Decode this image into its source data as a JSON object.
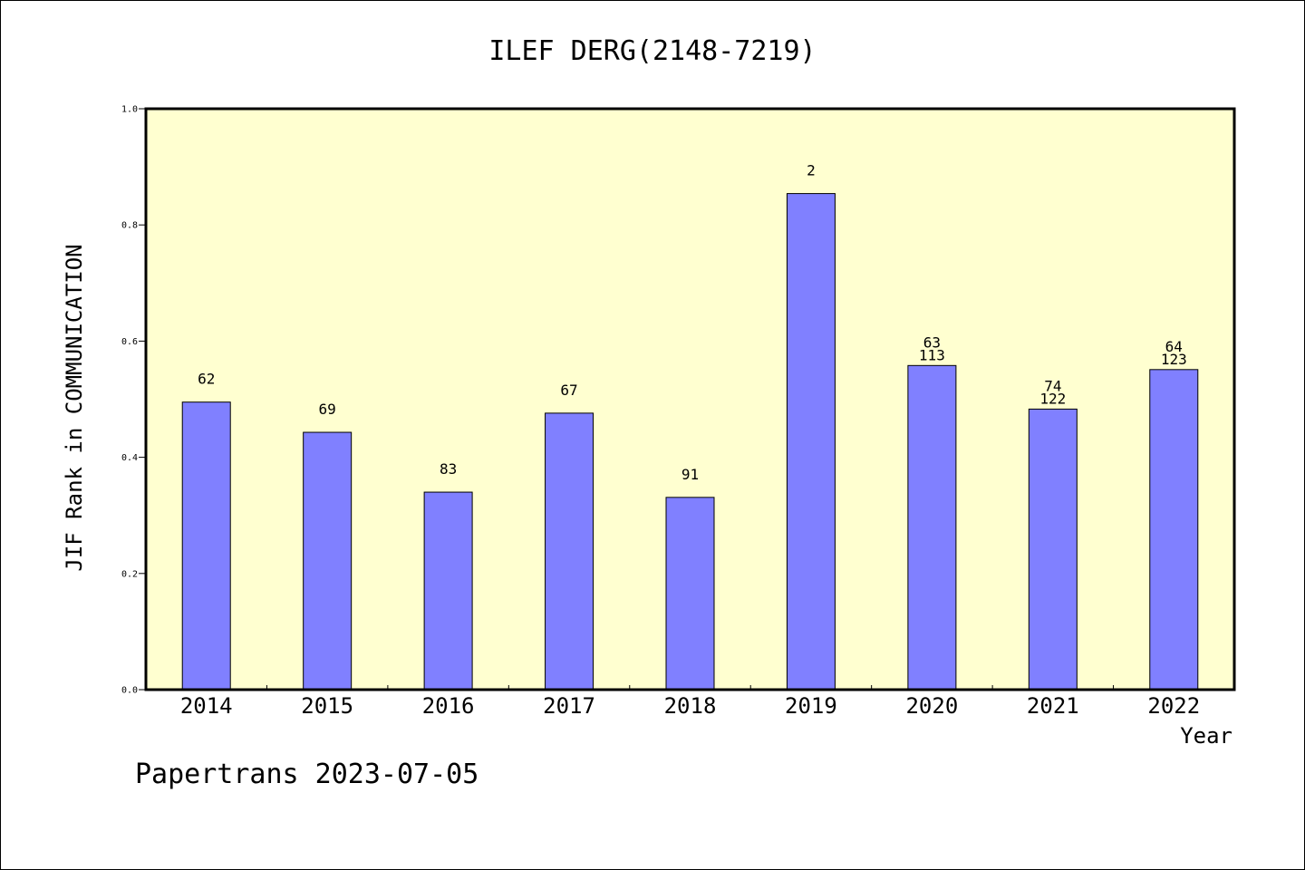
{
  "chart_data": {
    "type": "bar",
    "title": "ILEF DERG(2148-7219)",
    "xlabel": "Year",
    "ylabel": "JIF Rank in COMMUNICATION",
    "ylim": [
      0,
      1.0
    ],
    "yticks": [
      "0.0",
      "0.2",
      "0.4",
      "0.6",
      "0.8",
      "1.0"
    ],
    "ytick_values": [
      0,
      0.2,
      0.4,
      0.6,
      0.8,
      1.0
    ],
    "categories": [
      "2014",
      "2015",
      "2016",
      "2017",
      "2018",
      "2019",
      "2020",
      "2021",
      "2022"
    ],
    "values": [
      0.495,
      0.443,
      0.34,
      0.476,
      0.331,
      0.854,
      0.558,
      0.483,
      0.551
    ],
    "labels_top": [
      "62",
      "69",
      "83",
      "67",
      "91",
      "2",
      "63",
      "74",
      "64"
    ],
    "labels_bottom": [
      "",
      "",
      "",
      "",
      "",
      "",
      "113",
      "122",
      "123"
    ],
    "plot_background": "#ffffd0",
    "bar_color": "#8080ff",
    "grid": false,
    "legend": "none"
  },
  "footer": {
    "text": "Papertrans 2023-07-05"
  }
}
